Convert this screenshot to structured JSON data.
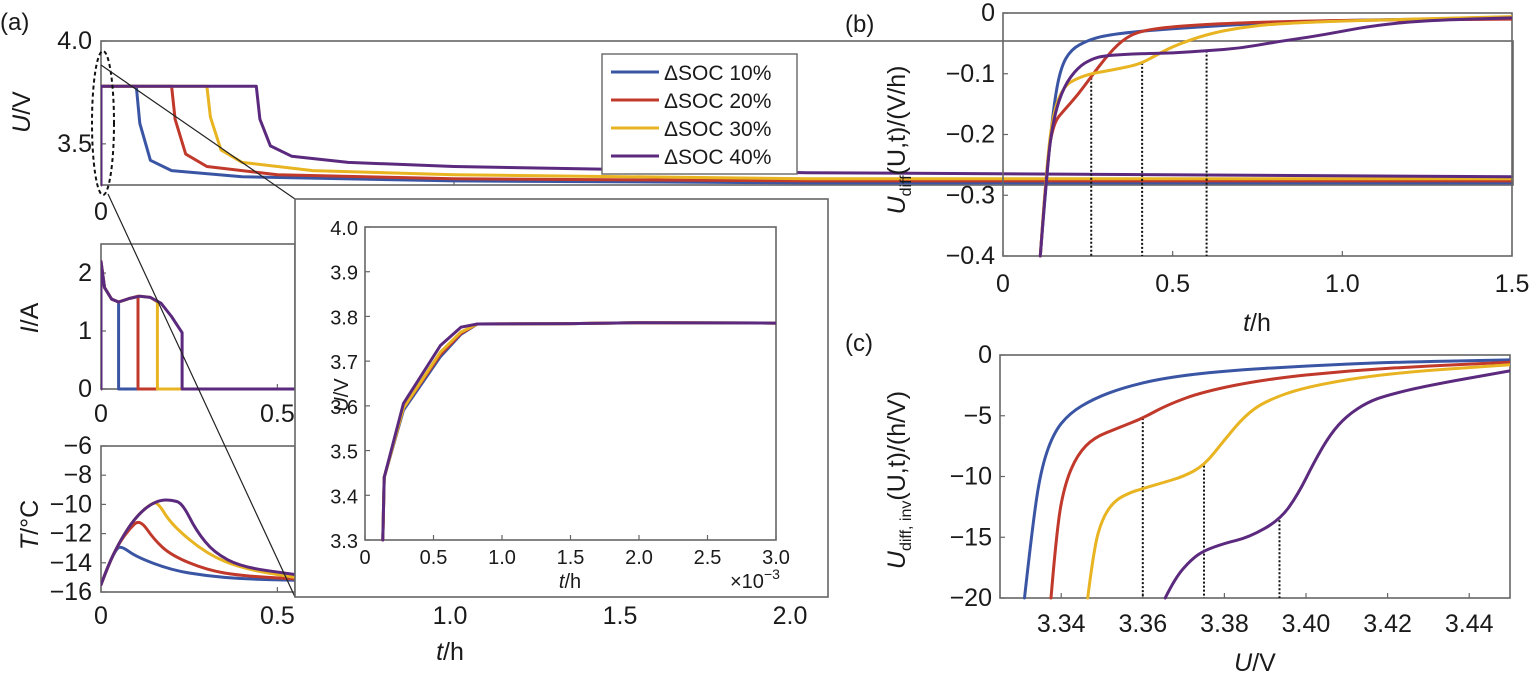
{
  "colors": {
    "s10": "#3a55a4",
    "s20": "#c0392b",
    "s30": "#e8b422",
    "s40": "#5b2a7e"
  },
  "legend": {
    "labels": [
      "ΔSOC 10%",
      "ΔSOC 20%",
      "ΔSOC 30%",
      "ΔSOC 40%"
    ],
    "placement": "top-right"
  },
  "chart_data": [
    {
      "id": "a-voltage",
      "panel": "(a)",
      "type": "line",
      "ylabel_var": "U",
      "ylabel_unit": "/V",
      "xlim": [
        0,
        2.0
      ],
      "ylim": [
        3.3,
        4.0
      ],
      "xticks": [
        "0",
        "0.5"
      ],
      "yticks": [
        "3.5",
        "4.0"
      ],
      "series": [
        {
          "name": "ΔSOC 10%",
          "x": [
            0,
            0,
            0.05,
            0.055,
            0.07,
            0.1,
            0.2,
            0.5,
            1.0,
            2.0
          ],
          "y": [
            3.3,
            3.78,
            3.78,
            3.6,
            3.42,
            3.37,
            3.34,
            3.32,
            3.31,
            3.31
          ]
        },
        {
          "name": "ΔSOC 20%",
          "x": [
            0,
            0,
            0.1,
            0.105,
            0.12,
            0.15,
            0.25,
            0.5,
            1.0,
            2.0
          ],
          "y": [
            3.3,
            3.78,
            3.78,
            3.62,
            3.45,
            3.39,
            3.35,
            3.33,
            3.32,
            3.32
          ]
        },
        {
          "name": "ΔSOC 30%",
          "x": [
            0,
            0,
            0.15,
            0.155,
            0.17,
            0.2,
            0.3,
            0.5,
            1.0,
            2.0
          ],
          "y": [
            3.3,
            3.78,
            3.78,
            3.63,
            3.47,
            3.41,
            3.37,
            3.35,
            3.33,
            3.33
          ]
        },
        {
          "name": "ΔSOC 40%",
          "x": [
            0,
            0,
            0.22,
            0.225,
            0.24,
            0.27,
            0.35,
            0.5,
            1.0,
            2.0
          ],
          "y": [
            3.3,
            3.78,
            3.78,
            3.62,
            3.49,
            3.44,
            3.41,
            3.39,
            3.36,
            3.34
          ]
        }
      ]
    },
    {
      "id": "a-current",
      "panel": "(a)",
      "type": "line",
      "ylabel_var": "I",
      "ylabel_unit": "/A",
      "xlim": [
        0,
        0.55
      ],
      "ylim": [
        0,
        2.5
      ],
      "xticks": [
        "0",
        "0.5"
      ],
      "yticks": [
        "0",
        "1",
        "2"
      ],
      "series": [
        {
          "name": "ΔSOC 10%",
          "x": [
            0,
            0,
            0.01,
            0.03,
            0.05,
            0.05,
            0.55
          ],
          "y": [
            0,
            2.2,
            1.75,
            1.55,
            1.5,
            0,
            0
          ]
        },
        {
          "name": "ΔSOC 20%",
          "x": [
            0,
            0,
            0.01,
            0.03,
            0.05,
            0.08,
            0.105,
            0.105,
            0.55
          ],
          "y": [
            0,
            2.2,
            1.75,
            1.55,
            1.5,
            1.56,
            1.6,
            0,
            0
          ]
        },
        {
          "name": "ΔSOC 30%",
          "x": [
            0,
            0,
            0.01,
            0.03,
            0.05,
            0.08,
            0.11,
            0.14,
            0.16,
            0.16,
            0.55
          ],
          "y": [
            0,
            2.2,
            1.75,
            1.55,
            1.5,
            1.56,
            1.6,
            1.58,
            1.5,
            0,
            0
          ]
        },
        {
          "name": "ΔSOC 40%",
          "x": [
            0,
            0,
            0.01,
            0.03,
            0.05,
            0.08,
            0.11,
            0.14,
            0.17,
            0.2,
            0.23,
            0.23,
            0.55
          ],
          "y": [
            0,
            2.2,
            1.75,
            1.55,
            1.5,
            1.56,
            1.6,
            1.58,
            1.48,
            1.25,
            0.97,
            0,
            0
          ]
        }
      ]
    },
    {
      "id": "a-temperature",
      "panel": "(a)",
      "type": "line",
      "ylabel_var": "T",
      "ylabel_unit": "/°C",
      "xlim": [
        0,
        0.55
      ],
      "ylim": [
        -16,
        -6
      ],
      "xticks": [
        "0",
        "0.5"
      ],
      "yticks": [
        "−16",
        "−14",
        "−12",
        "−10",
        "−8",
        "−6"
      ],
      "xlabel_var": "t",
      "xlabel_unit": "/h",
      "shared_xticks": [
        "1.0",
        "1.5",
        "2.0"
      ],
      "series": [
        {
          "name": "ΔSOC 10%",
          "x": [
            0,
            0.02,
            0.04,
            0.055,
            0.1,
            0.2,
            0.3,
            0.4,
            0.55
          ],
          "y": [
            -15.5,
            -14.2,
            -13.2,
            -12.8,
            -13.6,
            -14.5,
            -14.9,
            -15.1,
            -15.2
          ]
        },
        {
          "name": "ΔSOC 20%",
          "x": [
            0,
            0.02,
            0.05,
            0.08,
            0.11,
            0.15,
            0.2,
            0.3,
            0.4,
            0.55
          ],
          "y": [
            -15.5,
            -14.2,
            -12.7,
            -11.7,
            -11.0,
            -12.4,
            -13.5,
            -14.5,
            -14.9,
            -15.1
          ]
        },
        {
          "name": "ΔSOC 30%",
          "x": [
            0,
            0.02,
            0.05,
            0.08,
            0.11,
            0.14,
            0.16,
            0.2,
            0.3,
            0.4,
            0.55
          ],
          "y": [
            -15.5,
            -14.2,
            -12.7,
            -11.5,
            -10.6,
            -10.0,
            -9.8,
            -11.4,
            -13.4,
            -14.4,
            -15.0
          ]
        },
        {
          "name": "ΔSOC 40%",
          "x": [
            0,
            0.02,
            0.05,
            0.08,
            0.11,
            0.14,
            0.17,
            0.2,
            0.23,
            0.27,
            0.32,
            0.4,
            0.55
          ],
          "y": [
            -15.5,
            -14.2,
            -12.7,
            -11.5,
            -10.6,
            -10.0,
            -9.7,
            -9.7,
            -9.9,
            -11.8,
            -13.3,
            -14.3,
            -14.8
          ]
        }
      ]
    },
    {
      "id": "a-inset",
      "panel": "(a) inset",
      "type": "line",
      "ylabel_var": "U",
      "ylabel_unit": "/V",
      "xlabel_var": "t",
      "xlabel_unit": "/h",
      "x_multiplier": "×10",
      "x_multiplier_exp": "−3",
      "xlim": [
        0,
        3.0
      ],
      "ylim": [
        3.3,
        4.0
      ],
      "xticks": [
        "0",
        "0.5",
        "1.0",
        "1.5",
        "2.0",
        "2.5",
        "3.0"
      ],
      "yticks": [
        "3.3",
        "3.4",
        "3.5",
        "3.6",
        "3.7",
        "3.8",
        "3.9",
        "4.0"
      ],
      "series": [
        {
          "name": "ΔSOC 10%",
          "x": [
            0.13,
            0.14,
            0.28,
            0.55,
            0.7,
            0.82,
            1.5,
            2.0,
            3.0
          ],
          "y": [
            3.3,
            3.44,
            3.59,
            3.71,
            3.76,
            3.783,
            3.784,
            3.786,
            3.785
          ]
        },
        {
          "name": "ΔSOC 20%",
          "x": [
            0.13,
            0.14,
            0.28,
            0.55,
            0.7,
            0.82,
            1.5,
            2.0,
            3.0
          ],
          "y": [
            3.3,
            3.44,
            3.595,
            3.715,
            3.762,
            3.783,
            3.784,
            3.786,
            3.785
          ]
        },
        {
          "name": "ΔSOC 30%",
          "x": [
            0.13,
            0.14,
            0.28,
            0.55,
            0.7,
            0.82,
            1.5,
            2.0,
            3.0
          ],
          "y": [
            3.3,
            3.44,
            3.595,
            3.72,
            3.765,
            3.783,
            3.784,
            3.786,
            3.785
          ]
        },
        {
          "name": "ΔSOC 40%",
          "x": [
            0.13,
            0.14,
            0.28,
            0.55,
            0.7,
            0.82,
            1.5,
            2.0,
            3.0
          ],
          "y": [
            3.3,
            3.44,
            3.605,
            3.735,
            3.776,
            3.783,
            3.784,
            3.786,
            3.785
          ]
        }
      ]
    },
    {
      "id": "b",
      "panel": "(b)",
      "type": "line",
      "ylabel_var": "U",
      "ylabel_sub": "diff",
      "ylabel_rest": "(U,t)/(V/h)",
      "xlabel_var": "t",
      "xlabel_unit": "/h",
      "xlim": [
        0,
        1.5
      ],
      "ylim": [
        -0.4,
        0
      ],
      "xticks": [
        "0",
        "0.5",
        "1.0",
        "1.5"
      ],
      "yticks": [
        "−0.4",
        "−0.3",
        "−0.2",
        "−0.1",
        "0"
      ],
      "vlines": [
        {
          "x": 0.26,
          "ytop": -0.1
        },
        {
          "x": 0.41,
          "ytop": -0.082
        },
        {
          "x": 0.6,
          "ytop": -0.062
        }
      ],
      "series": [
        {
          "name": "ΔSOC 10%",
          "x": [
            0.11,
            0.13,
            0.15,
            0.17,
            0.2,
            0.25,
            0.3,
            0.4,
            0.6,
            0.8,
            1.0,
            1.5
          ],
          "y": [
            -0.4,
            -0.26,
            -0.15,
            -0.09,
            -0.06,
            -0.045,
            -0.037,
            -0.03,
            -0.022,
            -0.016,
            -0.012,
            -0.008
          ]
        },
        {
          "name": "ΔSOC 20%",
          "x": [
            0.11,
            0.13,
            0.15,
            0.18,
            0.22,
            0.26,
            0.3,
            0.35,
            0.4,
            0.5,
            0.7,
            1.0,
            1.5
          ],
          "y": [
            -0.4,
            -0.24,
            -0.18,
            -0.16,
            -0.135,
            -0.105,
            -0.075,
            -0.045,
            -0.03,
            -0.022,
            -0.016,
            -0.012,
            -0.01
          ]
        },
        {
          "name": "ΔSOC 30%",
          "x": [
            0.11,
            0.13,
            0.15,
            0.18,
            0.22,
            0.26,
            0.32,
            0.38,
            0.41,
            0.45,
            0.5,
            0.6,
            0.7,
            0.8,
            1.0,
            1.5
          ],
          "y": [
            -0.4,
            -0.24,
            -0.16,
            -0.12,
            -0.107,
            -0.1,
            -0.094,
            -0.087,
            -0.082,
            -0.07,
            -0.055,
            -0.035,
            -0.024,
            -0.018,
            -0.013,
            -0.006
          ]
        },
        {
          "name": "ΔSOC 40%",
          "x": [
            0.11,
            0.13,
            0.15,
            0.18,
            0.22,
            0.26,
            0.3,
            0.4,
            0.5,
            0.6,
            0.7,
            0.8,
            0.9,
            1.0,
            1.1,
            1.25,
            1.5
          ],
          "y": [
            -0.4,
            -0.25,
            -0.17,
            -0.12,
            -0.09,
            -0.076,
            -0.07,
            -0.067,
            -0.066,
            -0.062,
            -0.058,
            -0.048,
            -0.04,
            -0.03,
            -0.02,
            -0.012,
            -0.008
          ]
        }
      ]
    },
    {
      "id": "c",
      "panel": "(c)",
      "type": "line",
      "ylabel_var": "U",
      "ylabel_sub": "diff, inv",
      "ylabel_rest": "(U,t)/(h/V)",
      "xlabel_var": "U",
      "xlabel_unit": "/V",
      "xlim": [
        3.325,
        3.45
      ],
      "ylim": [
        -20,
        0
      ],
      "xticks": [
        "3.34",
        "3.36",
        "3.38",
        "3.40",
        "3.42",
        "3.44"
      ],
      "yticks": [
        "−20",
        "−15",
        "−10",
        "−5",
        "0"
      ],
      "vlines": [
        {
          "x": 3.36,
          "ytop": -5.2
        },
        {
          "x": 3.375,
          "ytop": -9.1
        },
        {
          "x": 3.3935,
          "ytop": -13.6
        }
      ],
      "series": [
        {
          "name": "ΔSOC 10%",
          "x": [
            3.331,
            3.333,
            3.335,
            3.338,
            3.342,
            3.348,
            3.355,
            3.365,
            3.38,
            3.4,
            3.42,
            3.45
          ],
          "y": [
            -20,
            -14,
            -9.5,
            -6.5,
            -4.8,
            -3.6,
            -2.7,
            -1.9,
            -1.3,
            -0.9,
            -0.6,
            -0.4
          ]
        },
        {
          "name": "ΔSOC 20%",
          "x": [
            3.3375,
            3.339,
            3.341,
            3.344,
            3.348,
            3.354,
            3.36,
            3.366,
            3.375,
            3.39,
            3.41,
            3.43,
            3.45
          ],
          "y": [
            -20,
            -14,
            -10.5,
            -8.2,
            -6.8,
            -6,
            -5.2,
            -4.1,
            -3.0,
            -2.0,
            -1.3,
            -0.9,
            -0.6
          ]
        },
        {
          "name": "ΔSOC 30%",
          "x": [
            3.3465,
            3.348,
            3.35,
            3.353,
            3.357,
            3.36,
            3.365,
            3.37,
            3.375,
            3.38,
            3.385,
            3.39,
            3.4,
            3.42,
            3.45
          ],
          "y": [
            -20,
            -16,
            -13.5,
            -12,
            -11.3,
            -11,
            -10.5,
            -10,
            -9.1,
            -7,
            -5,
            -3.8,
            -2.6,
            -1.5,
            -0.8
          ]
        },
        {
          "name": "ΔSOC 40%",
          "x": [
            3.3655,
            3.368,
            3.372,
            3.375,
            3.38,
            3.386,
            3.3935,
            3.398,
            3.402,
            3.406,
            3.41,
            3.415,
            3.42,
            3.43,
            3.45
          ],
          "y": [
            -20,
            -18.3,
            -16.8,
            -16.1,
            -15.5,
            -15,
            -13.6,
            -11.5,
            -8.8,
            -6.5,
            -5,
            -3.9,
            -3.3,
            -2.5,
            -1.3
          ]
        }
      ]
    }
  ]
}
